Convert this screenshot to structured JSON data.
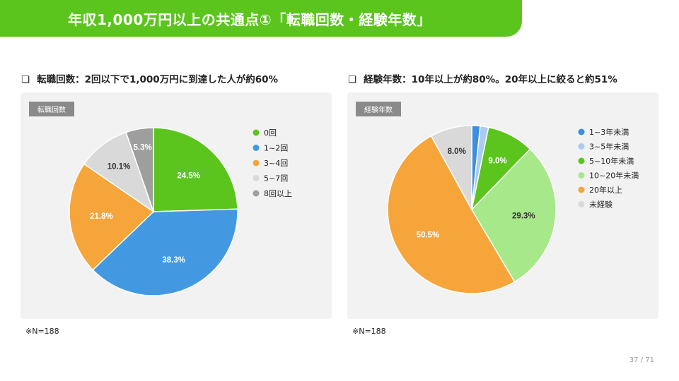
{
  "header": {
    "title": "年収1,000万円以上の共通点①「転職回数・経験年数」"
  },
  "left": {
    "heading_marker": "❏",
    "heading": "転職回数：2回以下で1,000万円に到達した人が約60%",
    "tag": "転職回数",
    "note": "※N=188"
  },
  "right": {
    "heading_marker": "❏",
    "heading": "経験年数：10年以上が約80%。20年以上に絞ると約51%",
    "tag": "経験年数",
    "note": "※N=188"
  },
  "page": "37 / 71",
  "chart_data": [
    {
      "type": "pie",
      "slices": [
        {
          "label": "0回",
          "value": 24.5,
          "color": "#5bc51e",
          "display": "24.5%"
        },
        {
          "label": "1~2回",
          "value": 38.3,
          "color": "#4299e1",
          "display": "38.3%"
        },
        {
          "label": "3~4回",
          "value": 21.8,
          "color": "#f6a53b",
          "display": "21.8%"
        },
        {
          "label": "5~7回",
          "value": 10.1,
          "color": "#d9d9d9",
          "display": "10.1%"
        },
        {
          "label": "8回以上",
          "value": 5.3,
          "color": "#9e9e9e",
          "display": "5.3%"
        }
      ],
      "legend_position": "right"
    },
    {
      "type": "pie",
      "slices": [
        {
          "label": "1~3年未満",
          "value": 1.6,
          "color": "#3b8fe0",
          "display": ""
        },
        {
          "label": "3~5年未満",
          "value": 1.6,
          "color": "#a9ccf0",
          "display": ""
        },
        {
          "label": "5~10年未満",
          "value": 9.0,
          "color": "#5bc51e",
          "display": "9.0%"
        },
        {
          "label": "10~20年未満",
          "value": 29.3,
          "color": "#a6e88a",
          "display": "29.3%"
        },
        {
          "label": "20年以上",
          "value": 50.5,
          "color": "#f6a53b",
          "display": "50.5%"
        },
        {
          "label": "未経験",
          "value": 8.0,
          "color": "#d9d9d9",
          "display": "8.0%"
        }
      ],
      "legend_position": "right"
    }
  ]
}
